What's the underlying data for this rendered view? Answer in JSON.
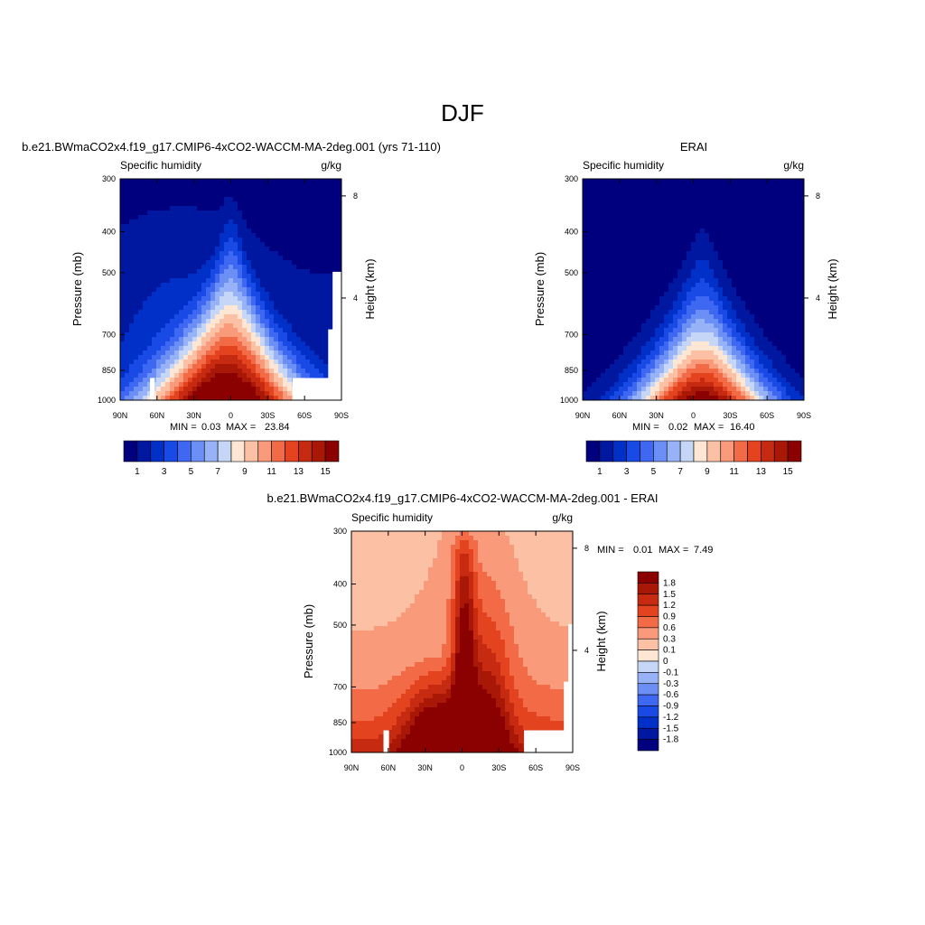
{
  "page_title": "DJF",
  "palette": [
    "#00007f",
    "#0018a0",
    "#0030c8",
    "#1a4ae6",
    "#3f68f2",
    "#6b8ff5",
    "#98b2f7",
    "#c6d6f7",
    "#fde6d4",
    "#fcc1a5",
    "#f99a7b",
    "#f36b46",
    "#e3441f",
    "#c62a10",
    "#a91707",
    "#8b0000"
  ],
  "chart_data": [
    {
      "type": "contour",
      "id": "model",
      "title": "b.e21.BWmaCO2x4.f19_g17.CMIP6-4xCO2-WACCM-MA-2deg.001 (yrs 71-110)",
      "variable": "Specific humidity",
      "units": "g/kg",
      "xlabel": "",
      "ylabel": "Pressure (mb)",
      "ylabel_right": "Height (km)",
      "x_ticks": [
        "90N",
        "60N",
        "30N",
        "0",
        "30S",
        "60S",
        "90S"
      ],
      "y_ticks": [
        "300",
        "400",
        "500",
        "700",
        "850",
        "1000"
      ],
      "y_right_ticks": [
        "8",
        "4"
      ],
      "stats": {
        "min_label": "MIN =",
        "min": "0.03",
        "max_label": "MAX =",
        "max": "23.84"
      },
      "colorbar_labels": [
        "1",
        "3",
        "5",
        "7",
        "9",
        "11",
        "13",
        "15"
      ],
      "levels": [
        1,
        2,
        3,
        4,
        5,
        6,
        7,
        8,
        9,
        10,
        11,
        12,
        13,
        14,
        15
      ],
      "peak_level": 15
    },
    {
      "type": "contour",
      "id": "obs",
      "title": "ERAI",
      "variable": "Specific humidity",
      "units": "g/kg",
      "xlabel": "",
      "ylabel": "Pressure (mb)",
      "ylabel_right": "Height (km)",
      "x_ticks": [
        "90N",
        "60N",
        "30N",
        "0",
        "30S",
        "60S",
        "90S"
      ],
      "y_ticks": [
        "300",
        "400",
        "500",
        "700",
        "850",
        "1000"
      ],
      "y_right_ticks": [
        "8",
        "4"
      ],
      "stats": {
        "min_label": "MIN =",
        "min": "0.02",
        "max_label": "MAX =",
        "max": "16.40"
      },
      "colorbar_labels": [
        "1",
        "3",
        "5",
        "7",
        "9",
        "11",
        "13",
        "15"
      ],
      "levels": [
        1,
        2,
        3,
        4,
        5,
        6,
        7,
        8,
        9,
        10,
        11,
        12,
        13,
        14,
        15
      ],
      "peak_level": 15
    },
    {
      "type": "contour",
      "id": "diff",
      "title": "b.e21.BWmaCO2x4.f19_g17.CMIP6-4xCO2-WACCM-MA-2deg.001 - ERAI",
      "variable": "Specific humidity",
      "units": "g/kg",
      "xlabel": "",
      "ylabel": "Pressure (mb)",
      "ylabel_right": "Height (km)",
      "x_ticks": [
        "90N",
        "60N",
        "30N",
        "0",
        "30S",
        "60S",
        "90S"
      ],
      "y_ticks": [
        "300",
        "400",
        "500",
        "700",
        "850",
        "1000"
      ],
      "y_right_ticks": [
        "8",
        "4"
      ],
      "stats": {
        "min_label": "MIN =",
        "min": "0.01",
        "max_label": "MAX =",
        "max": "7.49"
      },
      "colorbar_labels": [
        "1.8",
        "1.5",
        "1.2",
        "0.9",
        "0.6",
        "0.3",
        "0.1",
        "0",
        "-0.1",
        "-0.3",
        "-0.6",
        "-0.9",
        "-1.2",
        "-1.5",
        "-1.8"
      ],
      "levels": [
        -1.8,
        -1.5,
        -1.2,
        -0.9,
        -0.6,
        -0.3,
        -0.1,
        0,
        0.1,
        0.3,
        0.6,
        0.9,
        1.2,
        1.5,
        1.8
      ]
    }
  ]
}
